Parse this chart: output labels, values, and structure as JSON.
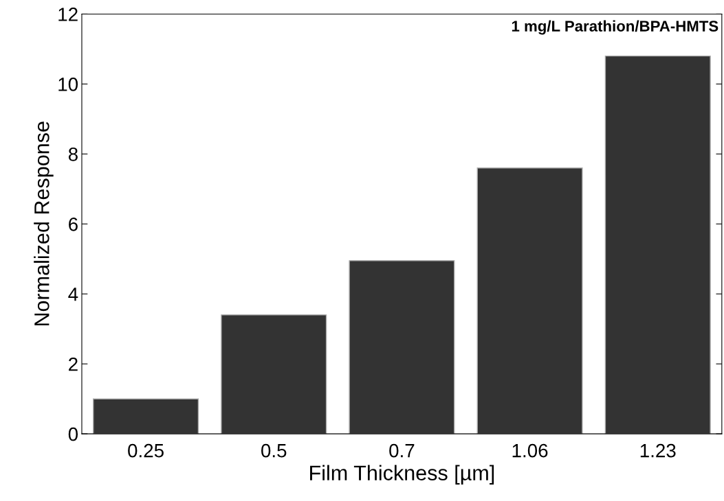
{
  "chart_data": {
    "type": "bar",
    "xlabel": "Film Thickness [µm]",
    "ylabel": "Normalized Response",
    "categories": [
      "0.25",
      "0.5",
      "0.7",
      "1.06",
      "1.23"
    ],
    "values": [
      1.0,
      3.4,
      4.95,
      7.6,
      10.8
    ],
    "color": "#333333",
    "ylim": [
      0,
      12
    ],
    "yticks": [
      0,
      2,
      4,
      6,
      8,
      10,
      12
    ],
    "grid": false,
    "annotations": [
      "1 mg/L Parathion/BPA-HMTS"
    ]
  }
}
